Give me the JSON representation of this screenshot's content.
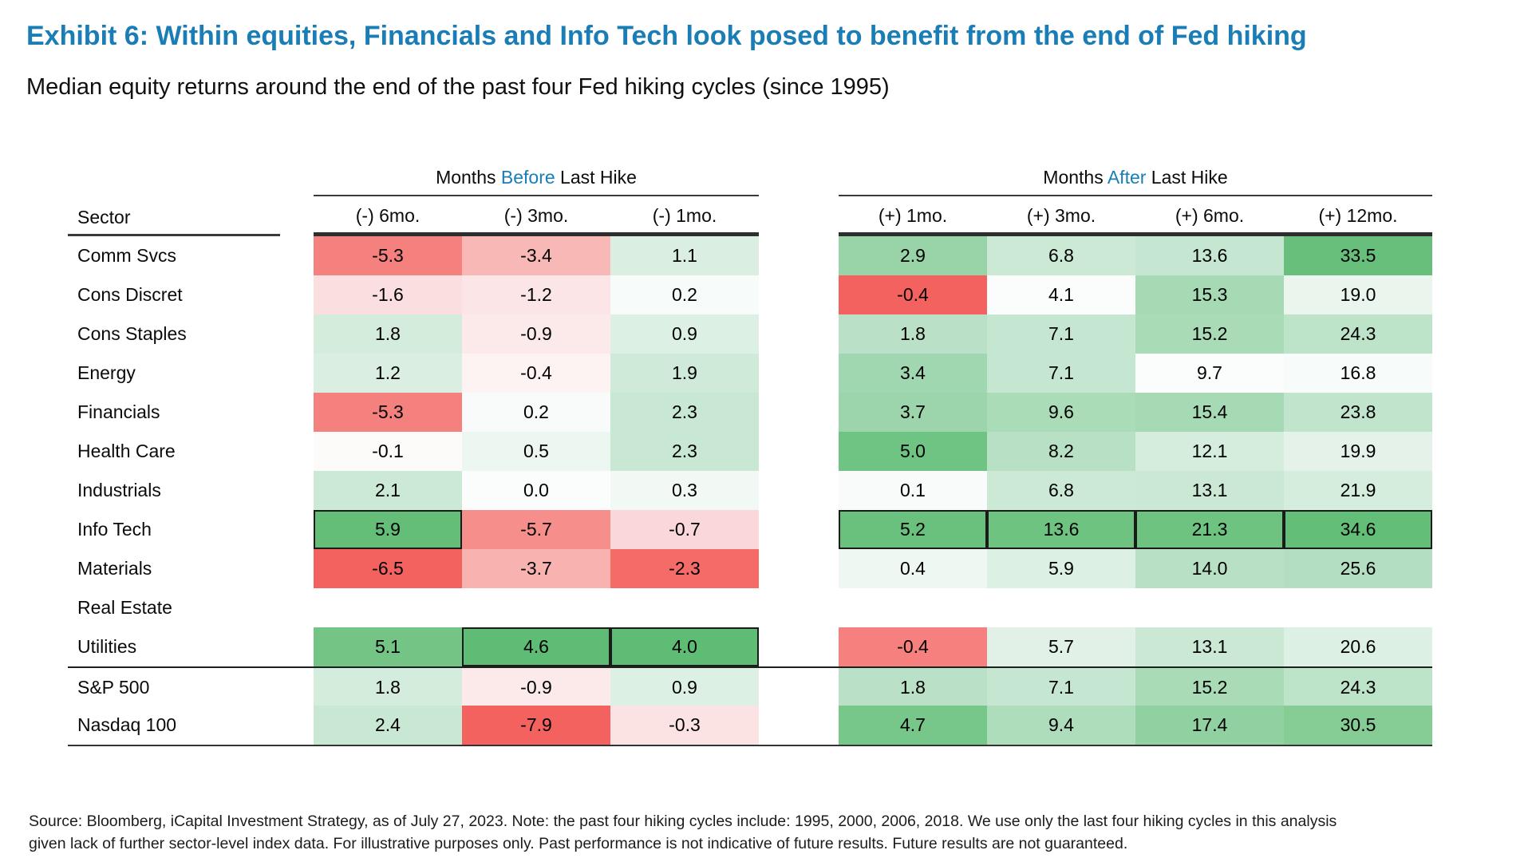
{
  "title": "Exhibit 6: Within equities, Financials and Info Tech look posed to benefit from the end of Fed hiking",
  "subtitle": "Median equity returns around the end of the past four Fed hiking cycles (since 1995)",
  "accent_color": "#1A7DB6",
  "chart_data": {
    "type": "heatmap",
    "sector_header": "Sector",
    "column_groups": [
      {
        "prefix": "Months ",
        "highlight": "Before",
        "suffix": " Last Hike",
        "columns": [
          "(-) 6mo.",
          "(-) 3mo.",
          "(-) 1mo."
        ]
      },
      {
        "prefix": "Months ",
        "highlight": "After",
        "suffix": " Last Hike",
        "columns": [
          "(+) 1mo.",
          "(+) 3mo.",
          "(+) 6mo.",
          "(+) 12mo."
        ]
      }
    ],
    "color_scale": {
      "negative": "#F4625F",
      "neutral": "#FFFFFF",
      "positive": "#5FBC74",
      "normalization": "per column",
      "highlight_border": "#1b1b1b"
    },
    "rows": [
      {
        "sector": "Comm Svcs",
        "before": [
          {
            "v": -5.3,
            "c": "#F5817E"
          },
          {
            "v": -3.4,
            "c": "#F8B8B6"
          },
          {
            "v": 1.1,
            "c": "#DAEFE1"
          }
        ],
        "after": [
          {
            "v": 2.9,
            "c": "#98D4A8"
          },
          {
            "v": 6.8,
            "c": "#CCE9D5"
          },
          {
            "v": 13.6,
            "c": "#C5E6D0"
          },
          {
            "v": 33.5,
            "c": "#67BF7B"
          }
        ]
      },
      {
        "sector": "Cons Discret",
        "before": [
          {
            "v": -1.6,
            "c": "#FBDEDF"
          },
          {
            "v": -1.2,
            "c": "#FCE5E6"
          },
          {
            "v": 0.2,
            "c": "#F7FBF9"
          }
        ],
        "after": [
          {
            "v": -0.4,
            "c": "#F4625F"
          },
          {
            "v": 4.1,
            "c": "#FBFDFC"
          },
          {
            "v": 15.3,
            "c": "#A6DAB4"
          },
          {
            "v": 19.0,
            "c": "#EAF5EE"
          }
        ]
      },
      {
        "sector": "Cons Staples",
        "before": [
          {
            "v": 1.8,
            "c": "#D4ECDB"
          },
          {
            "v": -0.9,
            "c": "#FCE9EA"
          },
          {
            "v": 0.9,
            "c": "#DDF0E4"
          }
        ],
        "after": [
          {
            "v": 1.8,
            "c": "#BAE1C7"
          },
          {
            "v": 7.1,
            "c": "#C5E6D0"
          },
          {
            "v": 15.2,
            "c": "#A8DBB6"
          },
          {
            "v": 24.3,
            "c": "#BDE3C9"
          }
        ]
      },
      {
        "sector": "Energy",
        "before": [
          {
            "v": 1.2,
            "c": "#DAEEE1"
          },
          {
            "v": -0.4,
            "c": "#FDF3F3"
          },
          {
            "v": 1.9,
            "c": "#CFEAD8"
          }
        ],
        "after": [
          {
            "v": 3.4,
            "c": "#A1D7B0"
          },
          {
            "v": 7.1,
            "c": "#C5E6D0"
          },
          {
            "v": 9.7,
            "c": "#FBFDFC"
          },
          {
            "v": 16.8,
            "c": "#F7FBF9"
          }
        ]
      },
      {
        "sector": "Financials",
        "before": [
          {
            "v": -5.3,
            "c": "#F5817E"
          },
          {
            "v": 0.2,
            "c": "#F8FBFA"
          },
          {
            "v": 2.3,
            "c": "#C9E8D3"
          }
        ],
        "after": [
          {
            "v": 3.7,
            "c": "#9CD5AC"
          },
          {
            "v": 9.6,
            "c": "#AADCB8"
          },
          {
            "v": 15.4,
            "c": "#A6DAB4"
          },
          {
            "v": 23.8,
            "c": "#C1E4CC"
          }
        ]
      },
      {
        "sector": "Health Care",
        "before": [
          {
            "v": -0.1,
            "c": "#FDFAFA"
          },
          {
            "v": 0.5,
            "c": "#EDF7F1"
          },
          {
            "v": 2.3,
            "c": "#C9E8D3"
          }
        ],
        "after": [
          {
            "v": 5.0,
            "c": "#70C483"
          },
          {
            "v": 8.2,
            "c": "#B8E0C4"
          },
          {
            "v": 12.1,
            "c": "#D5EDDC"
          },
          {
            "v": 19.9,
            "c": "#E4F2E9"
          }
        ]
      },
      {
        "sector": "Industrials",
        "before": [
          {
            "v": 2.1,
            "c": "#CCE9D5"
          },
          {
            "v": 0.0,
            "c": "#FBFCFC"
          },
          {
            "v": 0.3,
            "c": "#F2F9F5"
          }
        ],
        "after": [
          {
            "v": 0.1,
            "c": "#F8FBFA"
          },
          {
            "v": 6.8,
            "c": "#CCE9D5"
          },
          {
            "v": 13.1,
            "c": "#CAE8D4"
          },
          {
            "v": 21.9,
            "c": "#D5EDDC"
          }
        ]
      },
      {
        "sector": "Info Tech",
        "before": [
          {
            "v": 5.9,
            "c": "#64BE78",
            "b": true
          },
          {
            "v": -5.7,
            "c": "#F68E8B"
          },
          {
            "v": -0.7,
            "c": "#FAD8D9"
          }
        ],
        "after": [
          {
            "v": 5.2,
            "c": "#69C17D",
            "b": true
          },
          {
            "v": 13.6,
            "c": "#6EC381",
            "b": true
          },
          {
            "v": 21.3,
            "c": "#6EC381",
            "b": true
          },
          {
            "v": 34.6,
            "c": "#63BE77",
            "b": true
          }
        ]
      },
      {
        "sector": "Materials",
        "before": [
          {
            "v": -6.5,
            "c": "#F4625F"
          },
          {
            "v": -3.7,
            "c": "#F8B3B1"
          },
          {
            "v": -2.3,
            "c": "#F46B68"
          }
        ],
        "after": [
          {
            "v": 0.4,
            "c": "#EEF7F2"
          },
          {
            "v": 5.9,
            "c": "#DDF0E4"
          },
          {
            "v": 14.0,
            "c": "#B8E0C4"
          },
          {
            "v": 25.6,
            "c": "#B3DEC1"
          }
        ]
      },
      {
        "sector": "Real Estate",
        "before": null,
        "after": null
      },
      {
        "sector": "Utilities",
        "before": [
          {
            "v": 5.1,
            "c": "#74C585"
          },
          {
            "v": 4.6,
            "c": "#5FBC74",
            "b": true
          },
          {
            "v": 4.0,
            "c": "#5FBC74",
            "b": true
          }
        ],
        "after": [
          {
            "v": -0.4,
            "c": "#F5807E"
          },
          {
            "v": 5.7,
            "c": "#E1F1E7"
          },
          {
            "v": 13.1,
            "c": "#CAE8D4"
          },
          {
            "v": 20.6,
            "c": "#DDF0E4"
          }
        ]
      },
      {
        "sector": "S&P 500",
        "rule_above": true,
        "before": [
          {
            "v": 1.8,
            "c": "#D4ECDB"
          },
          {
            "v": -0.9,
            "c": "#FCE9EA"
          },
          {
            "v": 0.9,
            "c": "#DDF0E4"
          }
        ],
        "after": [
          {
            "v": 1.8,
            "c": "#BAE1C7"
          },
          {
            "v": 7.1,
            "c": "#C5E6D0"
          },
          {
            "v": 15.2,
            "c": "#A8DBB6"
          },
          {
            "v": 24.3,
            "c": "#BDE3C9"
          }
        ]
      },
      {
        "sector": "Nasdaq 100",
        "before": [
          {
            "v": 2.4,
            "c": "#C9E8D3"
          },
          {
            "v": -7.9,
            "c": "#F4625F"
          },
          {
            "v": -0.3,
            "c": "#FBE3E4"
          }
        ],
        "after": [
          {
            "v": 4.7,
            "c": "#78C78A"
          },
          {
            "v": 9.4,
            "c": "#ADDDBB"
          },
          {
            "v": 17.4,
            "c": "#91D1A1"
          },
          {
            "v": 30.5,
            "c": "#85CD95"
          }
        ]
      }
    ]
  },
  "footer": {
    "lines": [
      "Source: Bloomberg, iCapital Investment Strategy, as of July 27, 2023. Note: the past four hiking cycles include: 1995, 2000, 2006, 2018. We use only the last four hiking cycles in this analysis",
      "given lack of further sector-level index data. For illustrative purposes only. Past performance is not indicative of future results. Future results are not guaranteed."
    ]
  }
}
